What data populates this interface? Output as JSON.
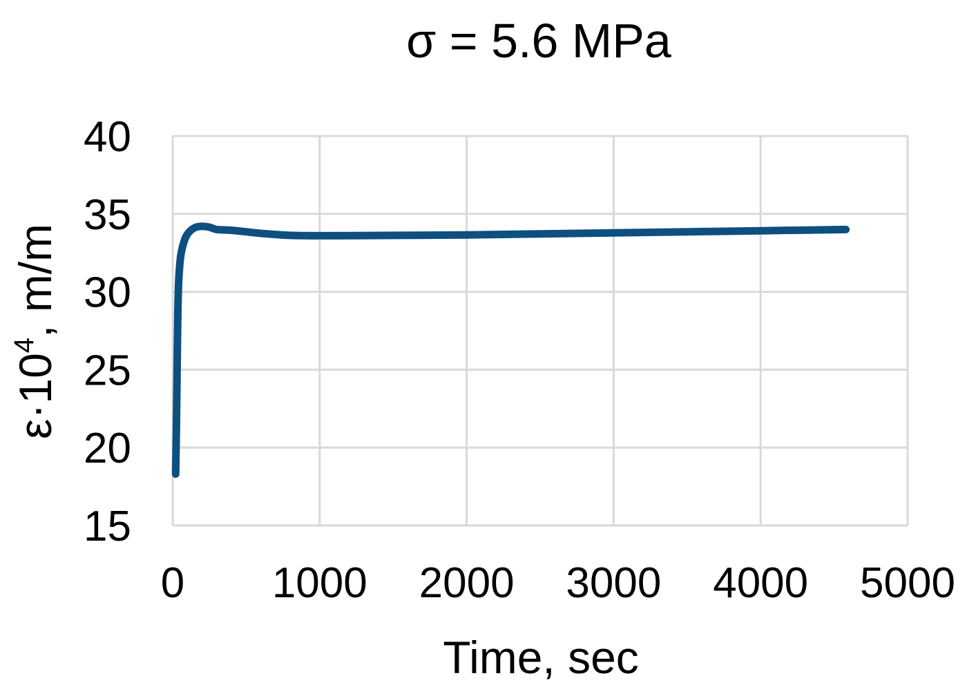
{
  "chart_data": {
    "type": "line",
    "title": "σ = 5.6 MPa",
    "xlabel": "Time, sec",
    "ylabel_main": "ε·10",
    "ylabel_sup": "4",
    "ylabel_tail": ", m/m",
    "xlim": [
      0,
      5000
    ],
    "ylim": [
      15,
      40
    ],
    "xticks": [
      0,
      1000,
      2000,
      3000,
      4000,
      5000
    ],
    "yticks": [
      15,
      20,
      25,
      30,
      35,
      40
    ],
    "grid": true,
    "line_color": "#0d4f7e",
    "series": [
      {
        "x": [
          20,
          25,
          30,
          35,
          40,
          50,
          60,
          80,
          100,
          130,
          160,
          200,
          250,
          300,
          400,
          500,
          600,
          700,
          800,
          1000,
          1500,
          2000,
          2500,
          3000,
          3500,
          4000,
          4580
        ],
        "y": [
          18.3,
          21,
          25,
          28.5,
          30.5,
          31.9,
          32.6,
          33.3,
          33.7,
          34.0,
          34.15,
          34.2,
          34.15,
          34.0,
          33.95,
          33.85,
          33.75,
          33.68,
          33.62,
          33.6,
          33.62,
          33.65,
          33.72,
          33.78,
          33.85,
          33.92,
          34.0
        ]
      }
    ]
  }
}
